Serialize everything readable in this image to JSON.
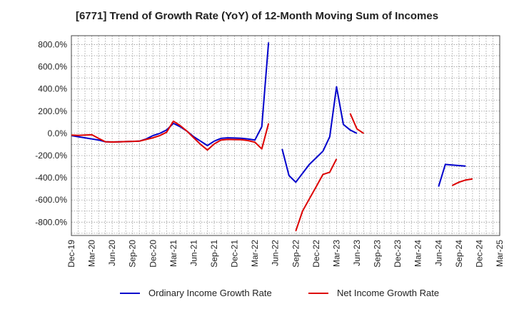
{
  "chart_data": {
    "type": "line",
    "title": "[6771]  Trend of Growth Rate (YoY) of 12-Month Moving Sum of Incomes",
    "x_labels": [
      "Dec-19",
      "Mar-20",
      "Jun-20",
      "Sep-20",
      "Dec-20",
      "Mar-21",
      "Jun-21",
      "Sep-21",
      "Dec-21",
      "Mar-22",
      "Jun-22",
      "Sep-22",
      "Dec-22",
      "Mar-23",
      "Jun-23",
      "Sep-23",
      "Dec-23",
      "Mar-24",
      "Jun-24",
      "Sep-24",
      "Dec-24",
      "Mar-25"
    ],
    "y_ticks": [
      800,
      600,
      400,
      200,
      0,
      -200,
      -400,
      -600,
      -800
    ],
    "y_tick_labels": [
      "800.0%",
      "600.0%",
      "400.0%",
      "200.0%",
      "0.0%",
      "-200.0%",
      "-400.0%",
      "-600.0%",
      "-800.0%"
    ],
    "ylim": [
      -920,
      880
    ],
    "grid": true,
    "legend_position": "bottom",
    "series": [
      {
        "name": "Ordinary Income Growth Rate",
        "color": "#0000cc",
        "values": [
          -20,
          -30,
          -40,
          -50,
          -60,
          -75,
          -78,
          -76,
          -74,
          -72,
          -70,
          -50,
          -20,
          0,
          30,
          90,
          60,
          20,
          -30,
          -70,
          -110,
          -70,
          -45,
          -40,
          -42,
          -44,
          -50,
          -60,
          60,
          820,
          null,
          -140,
          -380,
          -440,
          -360,
          -280,
          -220,
          -160,
          -30,
          420,
          80,
          30,
          0,
          null,
          null,
          null,
          null,
          null,
          null,
          null,
          null,
          null,
          null,
          null,
          -480,
          -280,
          -285,
          -290,
          -295
        ]
      },
      {
        "name": "Net Income Growth Rate",
        "color": "#dd0000",
        "values": [
          -15,
          -18,
          -15,
          -12,
          -45,
          -75,
          -78,
          -76,
          -74,
          -72,
          -70,
          -55,
          -40,
          -20,
          10,
          110,
          70,
          20,
          -40,
          -100,
          -150,
          -95,
          -60,
          -55,
          -56,
          -57,
          -65,
          -80,
          -140,
          90,
          null,
          null,
          null,
          -880,
          -700,
          -590,
          -480,
          -370,
          -350,
          -230,
          null,
          180,
          40,
          0,
          null,
          null,
          null,
          null,
          null,
          null,
          null,
          null,
          null,
          null,
          null,
          null,
          -470,
          -440,
          -420,
          -410
        ]
      }
    ]
  }
}
